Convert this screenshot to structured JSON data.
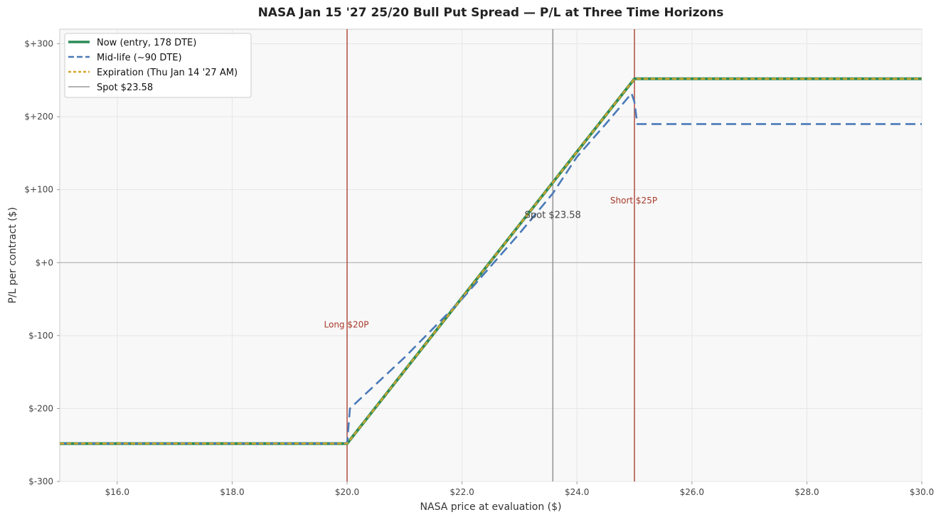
{
  "chart_data": {
    "type": "line",
    "title": "NASA Jan 15 '27 25/20 Bull Put Spread — P/L at Three Time Horizons",
    "xlabel": "NASA price at evaluation ($)",
    "ylabel": "P/L per contract ($)",
    "xlim": [
      15.0,
      30.0
    ],
    "ylim": [
      -300,
      320
    ],
    "x_ticks": [
      16,
      18,
      20,
      22,
      24,
      26,
      28,
      30
    ],
    "x_tick_labels": [
      "$16.0",
      "$18.0",
      "$20.0",
      "$22.0",
      "$24.0",
      "$26.0",
      "$28.0",
      "$30.0"
    ],
    "y_ticks": [
      -300,
      -200,
      -100,
      0,
      100,
      200,
      300
    ],
    "y_tick_labels": [
      "$-300",
      "$-200",
      "$-100",
      "$+0",
      "$+100",
      "$+200",
      "$+300"
    ],
    "grid": true,
    "legend_position": "top-left",
    "series": [
      {
        "name": "Now (entry, 178 DTE)",
        "color": "#2e8b57",
        "style": "solid",
        "x": [
          15.0,
          20.0,
          25.0,
          30.0
        ],
        "y": [
          -248,
          -248,
          252,
          252
        ]
      },
      {
        "name": "Mid-life (~90 DTE)",
        "color": "#4a7ab8",
        "style": "dashed",
        "x": [
          15.0,
          20.0,
          20.05,
          21.0,
          22.0,
          23.0,
          23.58,
          24.0,
          24.5,
          24.95,
          25.0,
          25.05,
          30.0
        ],
        "y": [
          -248,
          -248,
          -200,
          -130,
          -50,
          40,
          95,
          145,
          190,
          232,
          220,
          190,
          190
        ]
      },
      {
        "name": "Expiration (Thu Jan 14 '27 AM)",
        "color": "#d4a62a",
        "style": "dotted",
        "x": [
          15.0,
          20.0,
          25.0,
          30.0
        ],
        "y": [
          -248,
          -248,
          252,
          252
        ]
      }
    ],
    "reference_lines": {
      "spot": {
        "x": 23.58,
        "color": "#999999",
        "legend": "Spot $23.58",
        "label": "Spot $23.58",
        "label_y": 65
      },
      "long_strike": {
        "x": 20.0,
        "color": "#b5574a",
        "label": "Long $20P",
        "label_y": -85
      },
      "short_strike": {
        "x": 25.0,
        "color": "#b5574a",
        "label": "Short $25P",
        "label_y": 85
      },
      "zero_line": {
        "y": 0,
        "color": "#aaaaaa"
      }
    }
  }
}
